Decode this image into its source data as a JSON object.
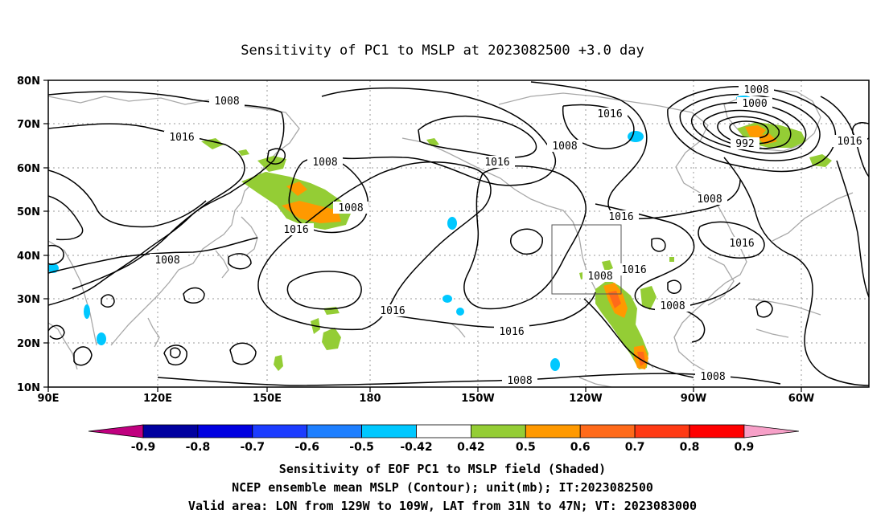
{
  "title": "Sensitivity of PC1 to MSLP at 2023082500 +3.0 day",
  "map": {
    "lon_labels": [
      "90E",
      "120E",
      "150E",
      "180",
      "150W",
      "120W",
      "90W",
      "60W"
    ],
    "lat_labels": [
      "10N",
      "20N",
      "30N",
      "40N",
      "50N",
      "60N",
      "70N",
      "80N"
    ],
    "contour_levels": [
      "1008",
      "1016",
      "1000",
      "992"
    ],
    "grid": true,
    "colors": {
      "coast": "#a8a8a8",
      "contour": "#000000",
      "grid": "#9a9a9a",
      "box": "#555555"
    }
  },
  "contour_labels": [
    {
      "text": "1008"
    },
    {
      "text": "1016"
    },
    {
      "text": "1008"
    },
    {
      "text": "1008"
    },
    {
      "text": "1016"
    },
    {
      "text": "1016"
    },
    {
      "text": "1008"
    },
    {
      "text": "1016"
    },
    {
      "text": "1016"
    },
    {
      "text": "1016"
    },
    {
      "text": "1008"
    },
    {
      "text": "1000"
    },
    {
      "text": "992"
    },
    {
      "text": "1008"
    },
    {
      "text": "1016"
    },
    {
      "text": "1016"
    },
    {
      "text": "1008"
    },
    {
      "text": "1016"
    },
    {
      "text": "1008"
    },
    {
      "text": "1016"
    },
    {
      "text": "1008"
    },
    {
      "text": "1016"
    },
    {
      "text": "1008"
    },
    {
      "text": "1008"
    }
  ],
  "colorbar": {
    "labels": [
      "-0.9",
      "-0.8",
      "-0.7",
      "-0.6",
      "-0.5",
      "-0.42",
      "0.42",
      "0.5",
      "0.6",
      "0.7",
      "0.8",
      "0.9"
    ],
    "colors": [
      "#c0007f",
      "#00009f",
      "#0000e0",
      "#1c3cff",
      "#1e7fff",
      "#00c8ff",
      "#ffffff",
      "#94cd35",
      "#ff9900",
      "#ff6a1a",
      "#ff3a14",
      "#ff0000",
      "#f7a0c8"
    ]
  },
  "captions": {
    "line1": "Sensitivity of EOF PC1 to MSLP field (Shaded)",
    "line2": "NCEP ensemble mean MSLP (Contour); unit(mb); IT:2023082500",
    "line3": "Valid area: LON from 129W to 109W, LAT from 31N to 47N; VT: 2023083000"
  }
}
